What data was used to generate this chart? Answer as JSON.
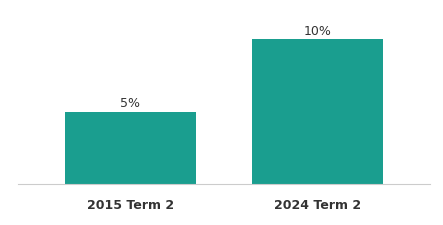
{
  "categories": [
    "2015 Term 2",
    "2024 Term 2"
  ],
  "values": [
    5,
    10
  ],
  "bar_color": "#1a9e8f",
  "background_color": "#ffffff",
  "label_fontsize": 9,
  "tick_fontsize": 9,
  "bar_width": 0.7,
  "ylim": [
    0,
    11.5
  ],
  "value_labels": [
    "5%",
    "10%"
  ]
}
